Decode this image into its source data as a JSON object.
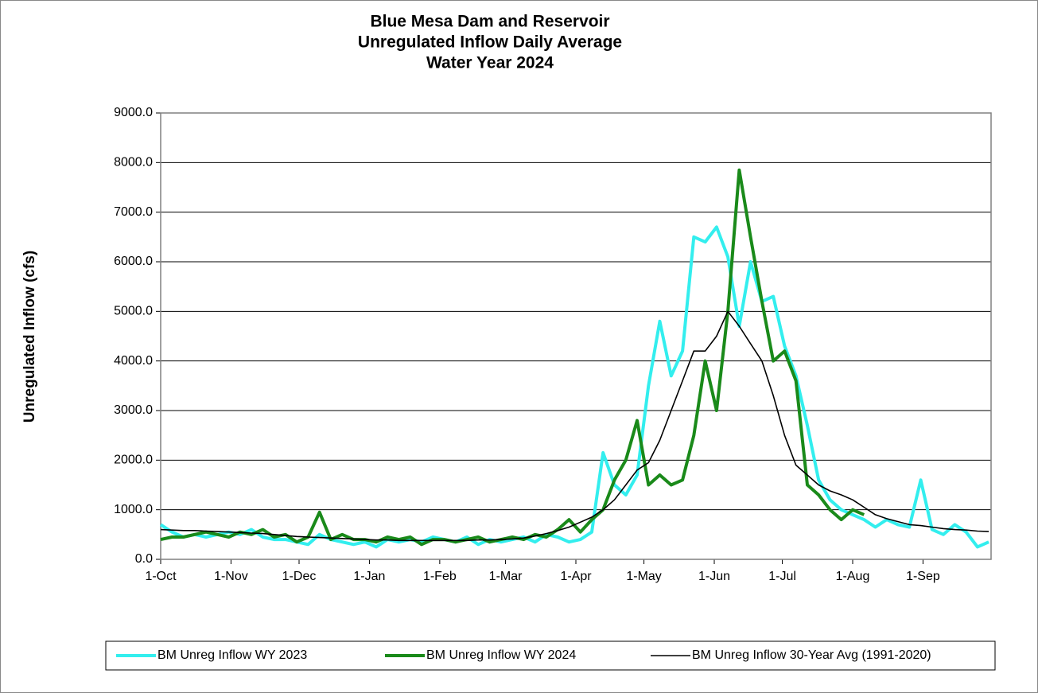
{
  "chart_data": {
    "type": "line",
    "title": [
      "Blue Mesa Dam and Reservoir",
      "Unregulated Inflow Daily Average",
      "Water Year 2024"
    ],
    "y_label": "Unregulated Inflow (cfs)",
    "x": [
      0,
      5,
      10,
      15,
      20,
      25,
      30,
      35,
      40,
      45,
      50,
      55,
      60,
      65,
      70,
      75,
      80,
      85,
      90,
      95,
      100,
      105,
      110,
      115,
      120,
      125,
      130,
      135,
      140,
      145,
      150,
      155,
      160,
      165,
      170,
      175,
      180,
      185,
      190,
      195,
      200,
      205,
      210,
      215,
      220,
      225,
      230,
      235,
      240,
      245,
      250,
      255,
      260,
      265,
      270,
      275,
      280,
      285,
      290,
      295,
      300,
      305,
      310,
      315,
      320,
      325,
      330,
      335,
      340,
      345,
      350,
      355,
      360,
      365
    ],
    "xlim": [
      0,
      366
    ],
    "xticks": [
      {
        "value": 0,
        "label": "1-Oct"
      },
      {
        "value": 31,
        "label": "1-Nov"
      },
      {
        "value": 61,
        "label": "1-Dec"
      },
      {
        "value": 92,
        "label": "1-Jan"
      },
      {
        "value": 123,
        "label": "1-Feb"
      },
      {
        "value": 152,
        "label": "1-Mar"
      },
      {
        "value": 183,
        "label": "1-Apr"
      },
      {
        "value": 213,
        "label": "1-May"
      },
      {
        "value": 244,
        "label": "1-Jun"
      },
      {
        "value": 274,
        "label": "1-Jul"
      },
      {
        "value": 305,
        "label": "1-Aug"
      },
      {
        "value": 336,
        "label": "1-Sep"
      }
    ],
    "ylim": [
      0,
      9000
    ],
    "yticks": [
      {
        "value": 0,
        "label": "0.0"
      },
      {
        "value": 1000,
        "label": "1000.0"
      },
      {
        "value": 2000,
        "label": "2000.0"
      },
      {
        "value": 3000,
        "label": "3000.0"
      },
      {
        "value": 4000,
        "label": "4000.0"
      },
      {
        "value": 5000,
        "label": "5000.0"
      },
      {
        "value": 6000,
        "label": "6000.0"
      },
      {
        "value": 7000,
        "label": "7000.0"
      },
      {
        "value": 8000,
        "label": "8000.0"
      },
      {
        "value": 9000,
        "label": "9000.0"
      }
    ],
    "grid": true,
    "legend": "bottom",
    "series": [
      {
        "name": "BM Unreg Inflow WY 2023",
        "color": "#33eeee",
        "width": 4,
        "values": [
          700,
          550,
          450,
          500,
          450,
          500,
          550,
          500,
          600,
          450,
          400,
          400,
          350,
          300,
          500,
          400,
          350,
          300,
          350,
          250,
          400,
          350,
          400,
          350,
          450,
          400,
          350,
          450,
          300,
          400,
          350,
          400,
          450,
          350,
          500,
          450,
          350,
          400,
          550,
          2150,
          1500,
          1300,
          1700,
          3500,
          4800,
          3700,
          4200,
          6500,
          6400,
          6700,
          6100,
          4700,
          6000,
          5200,
          5300,
          4300,
          3700,
          2700,
          1600,
          1200,
          1000,
          900,
          800,
          650,
          800,
          700,
          650,
          1600,
          600,
          500,
          700,
          550,
          250,
          350
        ]
      },
      {
        "name": "BM Unreg Inflow WY 2024",
        "color": "#1a8a1a",
        "width": 4,
        "values": [
          400,
          450,
          450,
          500,
          550,
          500,
          450,
          550,
          500,
          600,
          450,
          500,
          350,
          450,
          950,
          400,
          500,
          400,
          400,
          350,
          450,
          400,
          450,
          300,
          400,
          400,
          350,
          400,
          450,
          350,
          400,
          450,
          400,
          500,
          450,
          600,
          800,
          550,
          800,
          1000,
          1600,
          2000,
          2800,
          1500,
          1700,
          1500,
          1600,
          2500,
          4000,
          3000,
          5000,
          7850,
          6500,
          5200,
          4000,
          4200,
          3600,
          1500,
          1300,
          1000,
          800,
          1000,
          900,
          null,
          null,
          null,
          null,
          null,
          null,
          null,
          null,
          null,
          null,
          null
        ]
      },
      {
        "name": "BM Unreg Inflow 30-Year Avg (1991-2020)",
        "color": "#000000",
        "width": 1.6,
        "values": [
          600,
          590,
          580,
          580,
          570,
          560,
          550,
          540,
          530,
          520,
          500,
          480,
          460,
          450,
          440,
          430,
          420,
          410,
          400,
          390,
          390,
          380,
          380,
          380,
          380,
          380,
          380,
          380,
          390,
          390,
          400,
          410,
          430,
          470,
          520,
          580,
          650,
          750,
          850,
          1000,
          1200,
          1500,
          1800,
          1950,
          2400,
          3000,
          3600,
          4200,
          4200,
          4500,
          5000,
          4700,
          4350,
          4000,
          3300,
          2500,
          1900,
          1700,
          1500,
          1380,
          1300,
          1200,
          1050,
          900,
          820,
          760,
          700,
          680,
          650,
          620,
          600,
          590,
          570,
          560
        ]
      }
    ]
  }
}
